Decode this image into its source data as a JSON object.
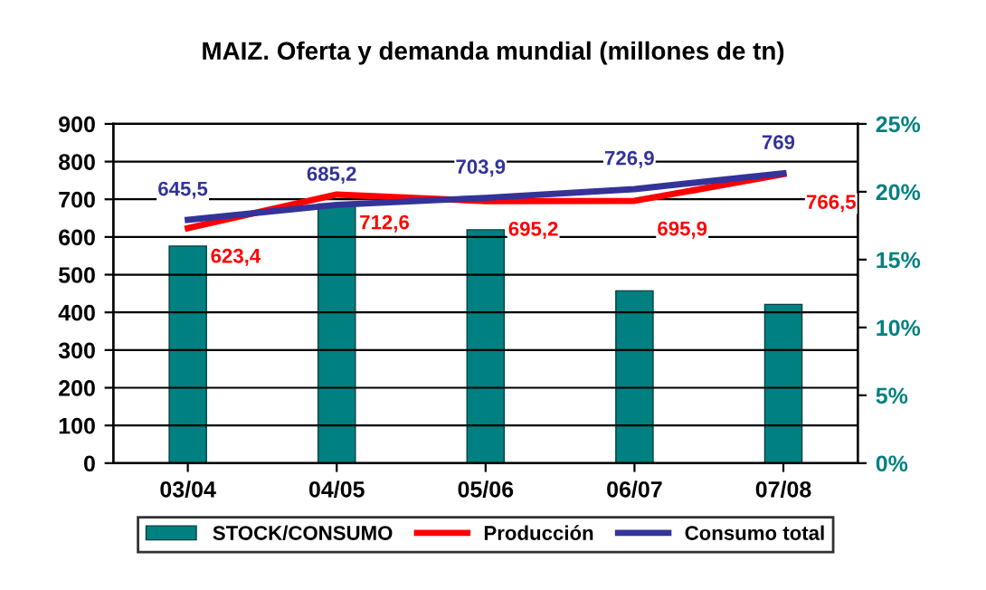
{
  "chart_data": {
    "type": "line",
    "title": "MAIZ. Oferta y demanda mundial (millones de tn)",
    "categories": [
      "03/04",
      "04/05",
      "05/06",
      "06/07",
      "07/08"
    ],
    "series": [
      {
        "name": "STOCK/CONSUMO",
        "type": "bar",
        "axis": "y2",
        "color": "#008080",
        "values": [
          16.0,
          19.1,
          17.2,
          12.7,
          11.7
        ]
      },
      {
        "name": "Producción",
        "color": "#ff0000",
        "values": [
          623.4,
          712.6,
          695.2,
          695.9,
          766.5
        ],
        "value_labels": [
          "623,4",
          "712,6",
          "695,2",
          "695,9",
          "766,5"
        ]
      },
      {
        "name": "Consumo total",
        "color": "#333399",
        "values": [
          645.5,
          685.2,
          703.9,
          726.9,
          769
        ],
        "value_labels": [
          "645,5",
          "685,2",
          "703,9",
          "726,9",
          "769"
        ]
      }
    ],
    "ylim": [
      0,
      900
    ],
    "yticks": [
      0,
      100,
      200,
      300,
      400,
      500,
      600,
      700,
      800,
      900
    ],
    "y2lim": [
      0,
      25
    ],
    "y2ticks": [
      {
        "value": 0,
        "label": "0%"
      },
      {
        "value": 5,
        "label": "5%"
      },
      {
        "value": 10,
        "label": "10%"
      },
      {
        "value": 15,
        "label": "15%"
      },
      {
        "value": 20,
        "label": "20%"
      },
      {
        "value": 25,
        "label": "25%"
      }
    ],
    "grid": "y",
    "legend": "bottom",
    "marker": "none",
    "line_style": "solid"
  }
}
